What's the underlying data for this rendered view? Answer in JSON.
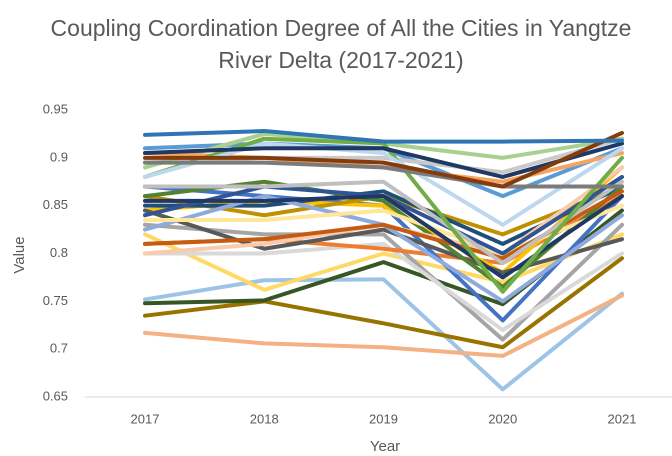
{
  "chart_data": {
    "type": "line",
    "title": "Coupling Coordination Degree of All the Cities in Yangtze River Delta (2017-2021)",
    "x_label": "Year",
    "y_label": "Value",
    "categories": [
      "2017",
      "2018",
      "2019",
      "2020",
      "2021"
    ],
    "ylim": [
      0.65,
      0.95
    ],
    "yticks": [
      0.65,
      0.7,
      0.75,
      0.8,
      0.85,
      0.9,
      0.95
    ],
    "grid": false,
    "series": [
      {
        "color": "#9dc3e6",
        "values": [
          0.752,
          0.772,
          0.773,
          0.658,
          0.758
        ]
      },
      {
        "color": "#f4b183",
        "values": [
          0.717,
          0.706,
          0.702,
          0.693,
          0.756
        ]
      },
      {
        "color": "#997300",
        "values": [
          0.735,
          0.75,
          0.727,
          0.702,
          0.795
        ]
      },
      {
        "color": "#375623",
        "values": [
          0.748,
          0.751,
          0.791,
          0.747,
          0.845
        ]
      },
      {
        "color": "#ffd966",
        "values": [
          0.82,
          0.762,
          0.8,
          0.77,
          0.82
        ]
      },
      {
        "color": "#a5a5a5",
        "values": [
          0.83,
          0.82,
          0.82,
          0.71,
          0.83
        ]
      },
      {
        "color": "#d9d9d9",
        "values": [
          0.8,
          0.8,
          0.81,
          0.72,
          0.8
        ]
      },
      {
        "color": "#ed7d31",
        "values": [
          0.81,
          0.815,
          0.805,
          0.79,
          0.86
        ]
      },
      {
        "color": "#4472c4",
        "values": [
          0.87,
          0.86,
          0.85,
          0.73,
          0.86
        ]
      },
      {
        "color": "#ffc000",
        "values": [
          0.845,
          0.855,
          0.85,
          0.78,
          0.89
        ]
      },
      {
        "color": "#bf9000",
        "values": [
          0.86,
          0.84,
          0.86,
          0.82,
          0.87
        ]
      },
      {
        "color": "#595959",
        "values": [
          0.845,
          0.805,
          0.825,
          0.78,
          0.815
        ]
      },
      {
        "color": "#1f4e79",
        "values": [
          0.85,
          0.85,
          0.865,
          0.81,
          0.87
        ]
      },
      {
        "color": "#548235",
        "values": [
          0.86,
          0.875,
          0.855,
          0.765,
          0.87
        ]
      },
      {
        "color": "#f8cbad",
        "values": [
          0.8,
          0.81,
          0.83,
          0.8,
          0.89
        ]
      },
      {
        "color": "#8faadc",
        "values": [
          0.825,
          0.86,
          0.83,
          0.75,
          0.84
        ]
      },
      {
        "color": "#ffe699",
        "values": [
          0.835,
          0.835,
          0.845,
          0.8,
          0.85
        ]
      },
      {
        "color": "#c55a11",
        "values": [
          0.81,
          0.815,
          0.83,
          0.795,
          0.865
        ]
      },
      {
        "color": "#2f5597",
        "values": [
          0.84,
          0.87,
          0.86,
          0.8,
          0.88
        ]
      },
      {
        "color": "#bfbfbf",
        "values": [
          0.87,
          0.87,
          0.875,
          0.79,
          0.875
        ]
      },
      {
        "color": "#203864",
        "values": [
          0.855,
          0.855,
          0.86,
          0.775,
          0.86
        ]
      },
      {
        "color": "#5b9bd5",
        "values": [
          0.91,
          0.915,
          0.91,
          0.86,
          0.91
        ]
      },
      {
        "color": "#c9c9c9",
        "values": [
          0.895,
          0.9,
          0.9,
          0.885,
          0.92
        ]
      },
      {
        "color": "#a9d18e",
        "values": [
          0.89,
          0.925,
          0.915,
          0.9,
          0.92
        ]
      },
      {
        "color": "#f4a460",
        "values": [
          0.905,
          0.9,
          0.89,
          0.875,
          0.905
        ]
      },
      {
        "color": "#70ad47",
        "values": [
          0.88,
          0.92,
          0.915,
          0.76,
          0.9
        ]
      },
      {
        "color": "#bdd7ee",
        "values": [
          0.88,
          0.915,
          0.905,
          0.83,
          0.91
        ]
      },
      {
        "color": "#7b7b7b",
        "values": [
          0.895,
          0.895,
          0.89,
          0.87,
          0.87
        ]
      },
      {
        "color": "#1f3864",
        "values": [
          0.905,
          0.91,
          0.91,
          0.88,
          0.915
        ]
      },
      {
        "color": "#843c0c",
        "values": [
          0.9,
          0.9,
          0.895,
          0.87,
          0.926
        ]
      },
      {
        "color": "#2e75b6",
        "values": [
          0.924,
          0.928,
          0.917,
          0.917,
          0.918
        ]
      }
    ]
  }
}
